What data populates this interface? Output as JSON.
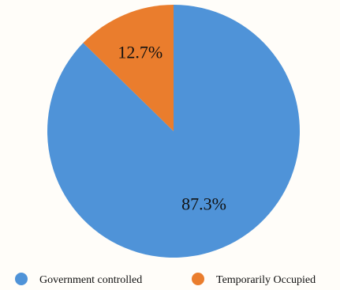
{
  "chart_data": {
    "type": "pie",
    "start_angle": "12 o'clock",
    "direction": "clockwise",
    "legend_position": "bottom",
    "slices": [
      {
        "label": "Government controlled",
        "value": 87.3,
        "display": "87.3%",
        "color": "#4f93d8"
      },
      {
        "label": "Temporarily Occupied",
        "value": 12.7,
        "display": "12.7%",
        "color": "#ea7d2d"
      }
    ]
  }
}
